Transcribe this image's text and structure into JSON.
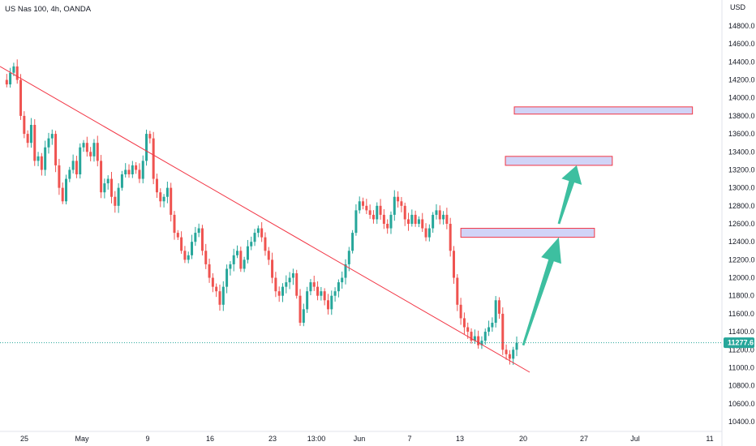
{
  "chart_data": {
    "type": "candlestick",
    "title": "US Nas 100, 4h, OANDA",
    "currency": "USD",
    "ylim": [
      10300,
      15000
    ],
    "y_ticks": [
      10400,
      10600,
      10800,
      11000,
      11200,
      11400,
      11600,
      11800,
      12000,
      12200,
      12400,
      12600,
      12800,
      13000,
      13200,
      13400,
      13600,
      13800,
      14000,
      14200,
      14400,
      14600,
      14800
    ],
    "y_tick_labels": [
      "10400.0",
      "10600.0",
      "10800.0",
      "11000.0",
      "11200.0",
      "11400.0",
      "11600.0",
      "11800.0",
      "12000.0",
      "12200.0",
      "12400.0",
      "12600.0",
      "12800.0",
      "13000.0",
      "13200.0",
      "13400.0",
      "13600.0",
      "13800.0",
      "14000.0",
      "14200.0",
      "14400.0",
      "14600.0",
      "14800.0"
    ],
    "x_tick_labels": [
      "25",
      "May",
      "9",
      "16",
      "23",
      "13:00",
      "Jun",
      "7",
      "13",
      "20",
      "27",
      "Jul",
      "11"
    ],
    "last_price": 11277.6,
    "last_price_label": "11277.6",
    "colors": {
      "up": "#26a69a",
      "down": "#ef5350",
      "trendline": "#f23645",
      "zone_fill": "#d1d4f7",
      "zone_border": "#f23645",
      "arrow": "#3dbfa0",
      "price_line": "#26a69a"
    },
    "price_path": [
      14200,
      14150,
      14280,
      14350,
      14200,
      13800,
      13600,
      13500,
      13700,
      13300,
      13350,
      13200,
      13450,
      13550,
      13600,
      13250,
      13000,
      12850,
      13100,
      13200,
      13300,
      13150,
      13450,
      13500,
      13400,
      13350,
      13500,
      13300,
      12950,
      13050,
      13100,
      12900,
      12800,
      13000,
      13150,
      13200,
      13150,
      13250,
      13200,
      13100,
      13300,
      13600,
      13550,
      13100,
      12950,
      12850,
      12900,
      13000,
      12700,
      12500,
      12450,
      12300,
      12200,
      12250,
      12400,
      12500,
      12550,
      12300,
      12150,
      12000,
      11900,
      11850,
      11700,
      11900,
      12100,
      12150,
      12250,
      12300,
      12100,
      12200,
      12350,
      12400,
      12500,
      12550,
      12450,
      12300,
      12200,
      12000,
      11850,
      11800,
      11900,
      11950,
      12000,
      12050,
      11800,
      11500,
      11650,
      11850,
      11950,
      11900,
      11800,
      11850,
      11750,
      11650,
      11800,
      11850,
      11950,
      12000,
      12150,
      12300,
      12500,
      12750,
      12850,
      12800,
      12750,
      12700,
      12650,
      12800,
      12700,
      12600,
      12550,
      12700,
      12900,
      12850,
      12800,
      12650,
      12600,
      12700,
      12600,
      12650,
      12550,
      12450,
      12550,
      12700,
      12750,
      12650,
      12700,
      12600,
      12300,
      12000,
      11700,
      11550,
      11450,
      11400,
      11300,
      11350,
      11250,
      11300,
      11400,
      11450,
      11500,
      11750,
      11600,
      11200,
      11150,
      11100,
      11200,
      11278
    ],
    "trendline": {
      "from": {
        "date": "2022-04-21",
        "price": 14350
      },
      "to": {
        "date": "2022-06-20",
        "price": 10950
      }
    },
    "zones": [
      {
        "from": "2022-06-13",
        "to": "2022-06-28",
        "low": 12450,
        "high": 12550
      },
      {
        "from": "2022-06-18",
        "to": "2022-06-30",
        "low": 13250,
        "high": 13350
      },
      {
        "from": "2022-06-19",
        "to": "2022-07-09",
        "low": 13820,
        "high": 13900
      }
    ],
    "arrows": [
      {
        "from": {
          "date": "2022-06-20",
          "price": 11250
        },
        "to": {
          "date": "2022-06-24",
          "price": 12450
        }
      },
      {
        "from": {
          "date": "2022-06-24",
          "price": 12600
        },
        "to": {
          "date": "2022-06-26",
          "price": 13250
        }
      }
    ]
  }
}
